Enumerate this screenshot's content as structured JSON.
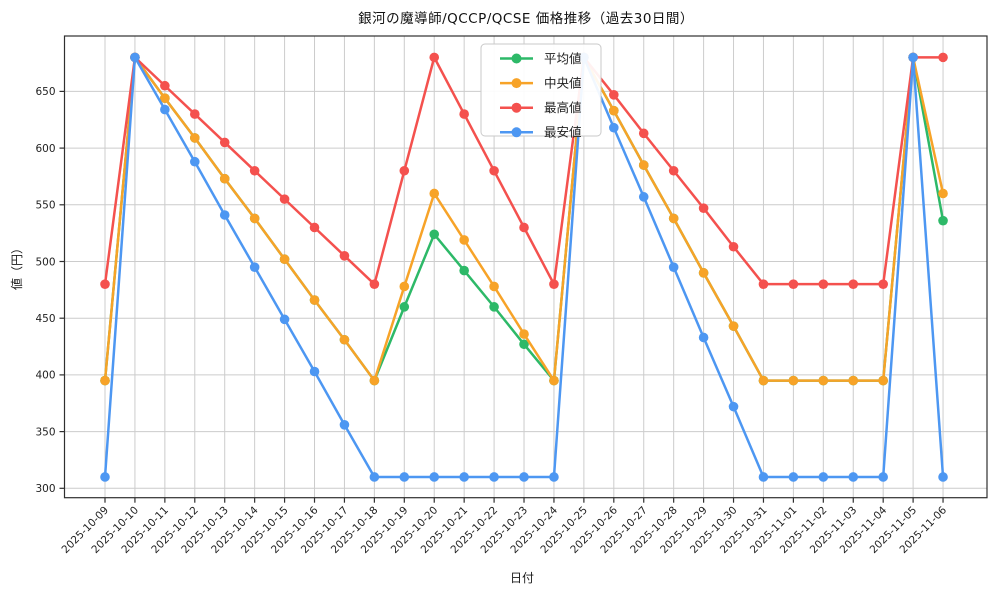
{
  "chart_data": {
    "type": "line",
    "title": "銀河の魔導師/QCCP/QCSE 価格推移（過去30日間）",
    "xlabel": "日付",
    "ylabel": "値（円）",
    "grid": true,
    "legend_position": "top-center",
    "ylim": [
      294,
      701
    ],
    "yticks": [
      300,
      350,
      400,
      450,
      500,
      550,
      600,
      650
    ],
    "x": [
      "2025-10-09",
      "2025-10-10",
      "2025-10-11",
      "2025-10-12",
      "2025-10-13",
      "2025-10-14",
      "2025-10-15",
      "2025-10-16",
      "2025-10-17",
      "2025-10-18",
      "2025-10-19",
      "2025-10-20",
      "2025-10-21",
      "2025-10-22",
      "2025-10-23",
      "2025-10-24",
      "2025-10-25",
      "2025-10-26",
      "2025-10-27",
      "2025-10-28",
      "2025-10-29",
      "2025-10-30",
      "2025-10-31",
      "2025-11-01",
      "2025-11-02",
      "2025-11-03",
      "2025-11-04",
      "2025-11-05",
      "2025-11-06"
    ],
    "series": [
      {
        "key": "average",
        "name": "平均値",
        "color": "#2db968",
        "values": [
          395,
          680,
          644,
          609,
          573,
          538,
          502,
          466,
          431,
          395,
          460,
          524,
          492,
          460,
          427,
          395,
          680,
          633,
          585,
          538,
          490,
          443,
          395,
          395,
          395,
          395,
          395,
          680,
          536
        ]
      },
      {
        "key": "median",
        "name": "中央値",
        "color": "#f7a328",
        "values": [
          395,
          680,
          644,
          609,
          573,
          538,
          502,
          466,
          431,
          395,
          478,
          560,
          519,
          478,
          436,
          395,
          680,
          633,
          585,
          538,
          490,
          443,
          395,
          395,
          395,
          395,
          395,
          680,
          560
        ]
      },
      {
        "key": "highest",
        "name": "最高値",
        "color": "#f4514e",
        "values": [
          480,
          680,
          655,
          630,
          605,
          580,
          555,
          530,
          505,
          480,
          580,
          680,
          630,
          580,
          530,
          480,
          680,
          647,
          613,
          580,
          547,
          513,
          480,
          480,
          480,
          480,
          480,
          680,
          680
        ]
      },
      {
        "key": "lowest",
        "name": "最安値",
        "color": "#4d97f2",
        "values": [
          310,
          680,
          634,
          588,
          541,
          495,
          449,
          403,
          356,
          310,
          310,
          310,
          310,
          310,
          310,
          310,
          680,
          618,
          557,
          495,
          433,
          372,
          310,
          310,
          310,
          310,
          310,
          680,
          310
        ]
      }
    ]
  }
}
